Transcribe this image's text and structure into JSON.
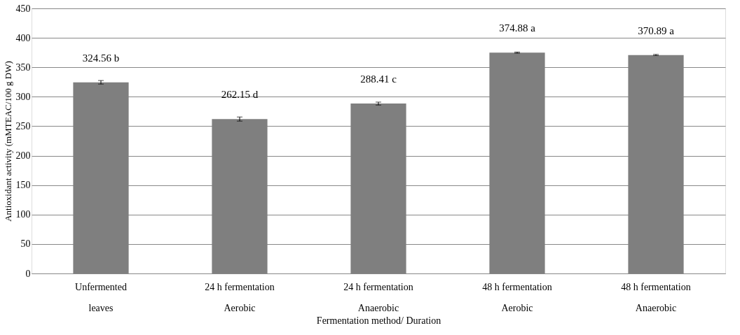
{
  "chart_data": {
    "type": "bar",
    "xlabel": "Fermentation method/ Duration",
    "ylabel": "Antioxidant activity (mMTEAC/100 g DW)",
    "categories": [
      "Unfermented\nleaves",
      "24 h fermentation\nAerobic",
      "24 h fermentation\nAnaerobic",
      "48 h fermentation\nAerobic",
      "48 h fermentation\nAnaerobic"
    ],
    "values": [
      324.56,
      262.15,
      288.41,
      374.88,
      370.89
    ],
    "errors": [
      3,
      3.5,
      2.5,
      1,
      1
    ],
    "value_labels": [
      "324.56 b",
      "262.15 d",
      "288.41  c",
      "374.88 a",
      "370.89 a"
    ],
    "color": "#7f7f7f",
    "ylim": [
      0,
      450
    ],
    "yticks": [
      0,
      50,
      100,
      150,
      200,
      250,
      300,
      350,
      400,
      450
    ],
    "grid": "y"
  }
}
